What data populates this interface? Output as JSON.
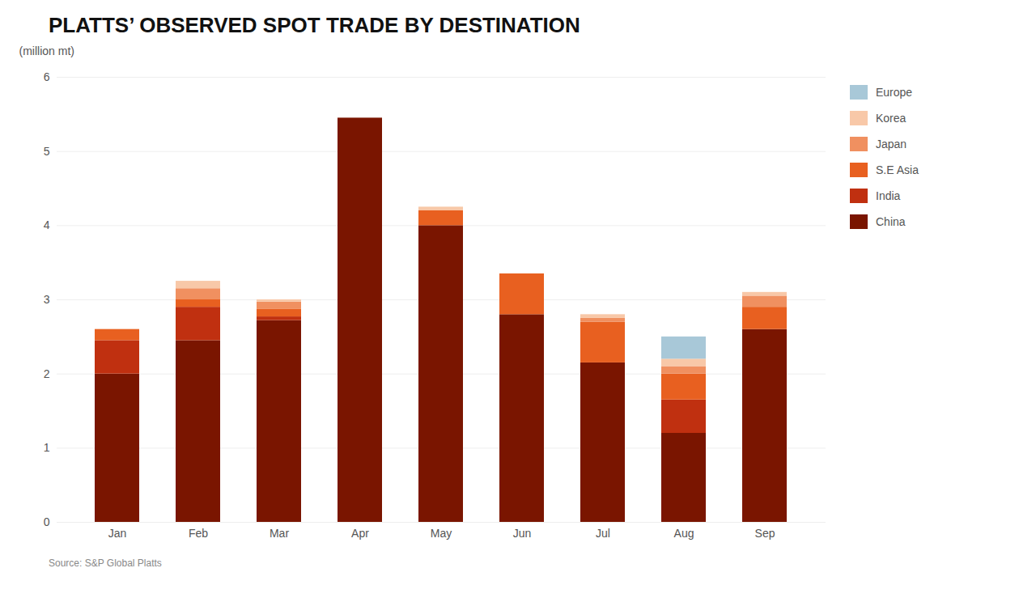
{
  "chart_data": {
    "type": "bar",
    "stacked": true,
    "title": "PLATTS’ OBSERVED SPOT TRADE BY DESTINATION",
    "ylabel": "(million mt)",
    "caption": "Source: S&P Global Platts",
    "categories": [
      "Jan",
      "Feb",
      "Mar",
      "Apr",
      "May",
      "Jun",
      "Jul",
      "Aug",
      "Sep"
    ],
    "series": [
      {
        "name": "China",
        "color": "#7a1500",
        "values": [
          2.0,
          2.45,
          2.72,
          5.45,
          4.0,
          2.8,
          2.15,
          1.2,
          2.6
        ]
      },
      {
        "name": "India",
        "color": "#c03010",
        "values": [
          0.45,
          0.45,
          0.05,
          0.0,
          0.0,
          0.0,
          0.0,
          0.45,
          0.0
        ]
      },
      {
        "name": "S.E Asia",
        "color": "#e86020",
        "values": [
          0.15,
          0.1,
          0.1,
          0.0,
          0.2,
          0.55,
          0.55,
          0.35,
          0.3
        ]
      },
      {
        "name": "Japan",
        "color": "#f09060",
        "values": [
          0.0,
          0.15,
          0.1,
          0.0,
          0.0,
          0.0,
          0.05,
          0.1,
          0.15
        ]
      },
      {
        "name": "Korea",
        "color": "#f8c8a8",
        "values": [
          0.0,
          0.1,
          0.03,
          0.0,
          0.05,
          0.0,
          0.05,
          0.1,
          0.05
        ]
      },
      {
        "name": "Europe",
        "color": "#a8c8d8",
        "values": [
          0.0,
          0.0,
          0.0,
          0.0,
          0.0,
          0.0,
          0.0,
          0.3,
          0.0
        ]
      }
    ],
    "ylim": [
      0,
      6
    ],
    "yticks": [
      0,
      1,
      2,
      3,
      4,
      5,
      6
    ],
    "grid": true,
    "legend": "right"
  }
}
